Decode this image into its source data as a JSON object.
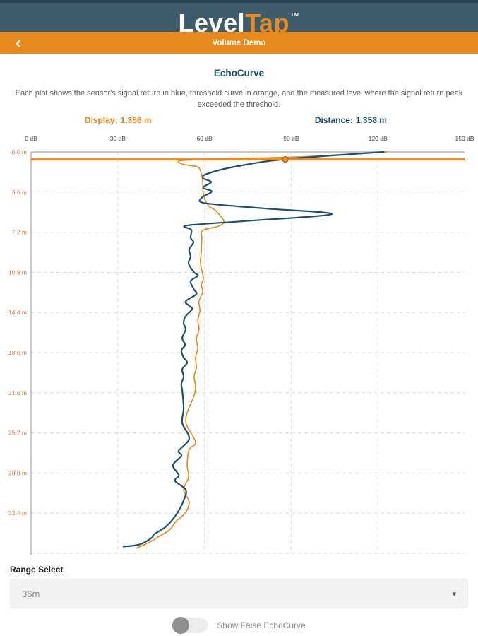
{
  "app": {
    "brand_level": "Level",
    "brand_tap": "Tap",
    "trademark": "™"
  },
  "nav": {
    "back_icon": "‹",
    "title": "Volume Demo"
  },
  "page": {
    "title": "EchoCurve",
    "description": "Each plot shows the sensor's signal return in blue, threshold curve in orange, and the measured level where the signal return peak exceeded the threshold."
  },
  "readouts": {
    "display": {
      "label": "Display:",
      "value": "1.356 m"
    },
    "distance": {
      "label": "Distance:",
      "value": "1.358 m"
    }
  },
  "chart_data": {
    "type": "line",
    "title": "EchoCurve",
    "x_axis": {
      "unit": "dB",
      "min": 0,
      "max": 150,
      "position": "top",
      "tick_values": [
        0,
        30,
        60,
        90,
        120,
        150
      ],
      "tick_labels": [
        "0 dB",
        "30 dB",
        "60 dB",
        "90 dB",
        "120 dB",
        "150 dB"
      ]
    },
    "y_axis": {
      "unit": "m",
      "min": 0,
      "max": 36,
      "position": "left",
      "direction": "down",
      "tick_values": [
        0,
        3.6,
        7.2,
        10.8,
        14.4,
        18,
        21.6,
        25.2,
        28.8,
        32.4
      ],
      "tick_labels": [
        "-0.0 m",
        "3.6 m",
        "7.2 m",
        "10.8 m",
        "14.4 m",
        "18.0 m",
        "21.6 m",
        "25.2 m",
        "28.8 m",
        "32.4 m"
      ]
    },
    "grid": "dashed",
    "colors": {
      "signal": "#1d4e6e",
      "threshold": "#e8871d",
      "level_line": "#e8871d",
      "axis": "#b5b5b5",
      "grid": "#dcdcdc"
    },
    "series": [
      {
        "name": "signal return",
        "color": "#1d4e6e",
        "points_depth_m_amp_db": [
          [
            0,
            122
          ],
          [
            0.65,
            88
          ],
          [
            1.3,
            71
          ],
          [
            1.95,
            61
          ],
          [
            2.35,
            59.5
          ],
          [
            2.7,
            62.3
          ],
          [
            3.2,
            59.5
          ],
          [
            3.55,
            62.5
          ],
          [
            4.1,
            59.1
          ],
          [
            4.6,
            60.3
          ],
          [
            5.05,
            80
          ],
          [
            5.58,
            104
          ],
          [
            6.2,
            74
          ],
          [
            6.6,
            54
          ],
          [
            7.0,
            55.5
          ],
          [
            7.7,
            55.2
          ],
          [
            8.1,
            56.2
          ],
          [
            8.75,
            54.7
          ],
          [
            9.4,
            55.2
          ],
          [
            10.0,
            54.5
          ],
          [
            10.8,
            56.4
          ],
          [
            11.1,
            57.7
          ],
          [
            11.6,
            55.2
          ],
          [
            12.35,
            56.4
          ],
          [
            12.75,
            57.2
          ],
          [
            13.4,
            53.5
          ],
          [
            13.8,
            54.7
          ],
          [
            14.1,
            55.7
          ],
          [
            14.8,
            53.3
          ],
          [
            15.4,
            52.8
          ],
          [
            15.9,
            53.5
          ],
          [
            16.7,
            52.3
          ],
          [
            17.3,
            53.3
          ],
          [
            17.8,
            52.0
          ],
          [
            18.45,
            52.8
          ],
          [
            18.9,
            54.0
          ],
          [
            19.5,
            52.3
          ],
          [
            20.15,
            52.8
          ],
          [
            20.8,
            52.0
          ],
          [
            21.4,
            52.3
          ],
          [
            23.0,
            52.8
          ],
          [
            24.3,
            52.3
          ],
          [
            25.7,
            54.7
          ],
          [
            26.8,
            51.1
          ],
          [
            27.25,
            52.0
          ],
          [
            28.1,
            49.1
          ],
          [
            29.0,
            51.1
          ],
          [
            29.5,
            49.8
          ],
          [
            30.3,
            53.5
          ],
          [
            31.25,
            52.8
          ],
          [
            32.5,
            50.3
          ],
          [
            33.6,
            46.7
          ],
          [
            34.3,
            42.5
          ],
          [
            34.6,
            41.8
          ],
          [
            35.2,
            37.6
          ],
          [
            35.4,
            32.0
          ]
        ]
      },
      {
        "name": "threshold",
        "color": "#e8871d",
        "points_depth_m_amp_db": [
          [
            0,
            123
          ],
          [
            0.45,
            92
          ],
          [
            0.63,
            62.5
          ],
          [
            0.76,
            52.3
          ],
          [
            0.95,
            51.1
          ],
          [
            1.15,
            53.3
          ],
          [
            1.35,
            57.7
          ],
          [
            1.95,
            58.9
          ],
          [
            2.7,
            59.4
          ],
          [
            3.8,
            59.6
          ],
          [
            4.8,
            61.3
          ],
          [
            5.25,
            63.8
          ],
          [
            6.2,
            66.7
          ],
          [
            6.65,
            65.0
          ],
          [
            7.05,
            59.4
          ],
          [
            7.8,
            59.1
          ],
          [
            8.95,
            58.9
          ],
          [
            10.0,
            58.6
          ],
          [
            11.3,
            59.6
          ],
          [
            11.9,
            58.9
          ],
          [
            12.55,
            59.4
          ],
          [
            13.4,
            58.1
          ],
          [
            14.25,
            58.4
          ],
          [
            15.1,
            57.7
          ],
          [
            15.9,
            58.1
          ],
          [
            16.8,
            57.2
          ],
          [
            17.6,
            57.7
          ],
          [
            18.45,
            56.9
          ],
          [
            19.35,
            57.2
          ],
          [
            20.15,
            56.4
          ],
          [
            21.0,
            56.9
          ],
          [
            21.85,
            56.4
          ],
          [
            24.1,
            53.5
          ],
          [
            26.0,
            56.9
          ],
          [
            26.7,
            54.7
          ],
          [
            28.1,
            54.0
          ],
          [
            29.15,
            54.5
          ],
          [
            30.3,
            52.8
          ],
          [
            31.4,
            54.7
          ],
          [
            32.4,
            53.3
          ],
          [
            33.1,
            50.3
          ],
          [
            33.9,
            47.9
          ],
          [
            34.5,
            44.2
          ],
          [
            35.05,
            40.6
          ],
          [
            35.55,
            36.4
          ]
        ]
      }
    ],
    "measured_level": {
      "depth_m": 0.67,
      "amp_db": 88,
      "display_m": 1.356,
      "distance_m": 1.358
    }
  },
  "range_select": {
    "label": "Range Select",
    "value": "36m",
    "caret": "▾"
  },
  "toggle": {
    "label": "Show False EchoCurve",
    "state": "off"
  }
}
